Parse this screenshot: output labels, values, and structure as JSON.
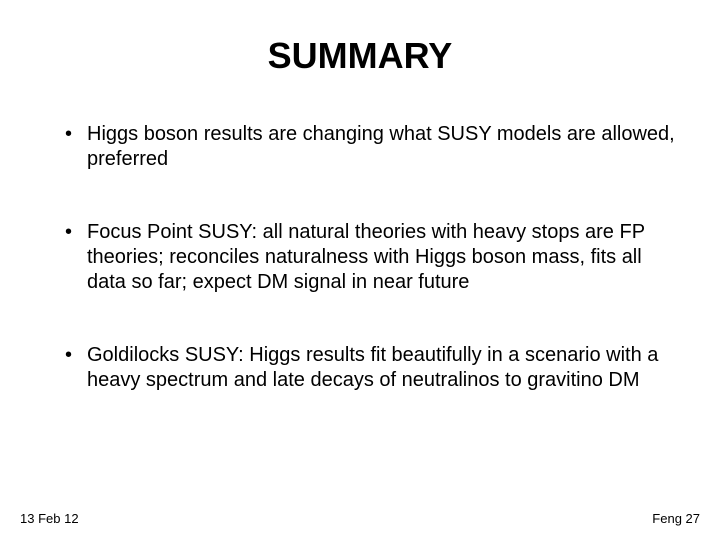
{
  "slide": {
    "title": "SUMMARY",
    "bullets": [
      "Higgs boson results are changing what SUSY models are allowed, preferred",
      "Focus Point SUSY: all natural theories with heavy stops are FP theories; reconciles naturalness with Higgs boson mass, fits all data so far; expect DM signal in near future",
      "Goldilocks SUSY: Higgs results fit beautifully in a scenario with a heavy spectrum and late decays of neutralinos to gravitino DM"
    ],
    "footer_left": "13 Feb 12",
    "footer_right": "Feng 27"
  },
  "styling": {
    "background_color": "#ffffff",
    "text_color": "#000000",
    "title_fontsize": 36,
    "title_fontweight": "bold",
    "bullet_fontsize": 20,
    "footer_fontsize": 13,
    "font_family": "Arial, Helvetica, sans-serif",
    "bullet_spacing": 48,
    "line_height": 1.25
  }
}
